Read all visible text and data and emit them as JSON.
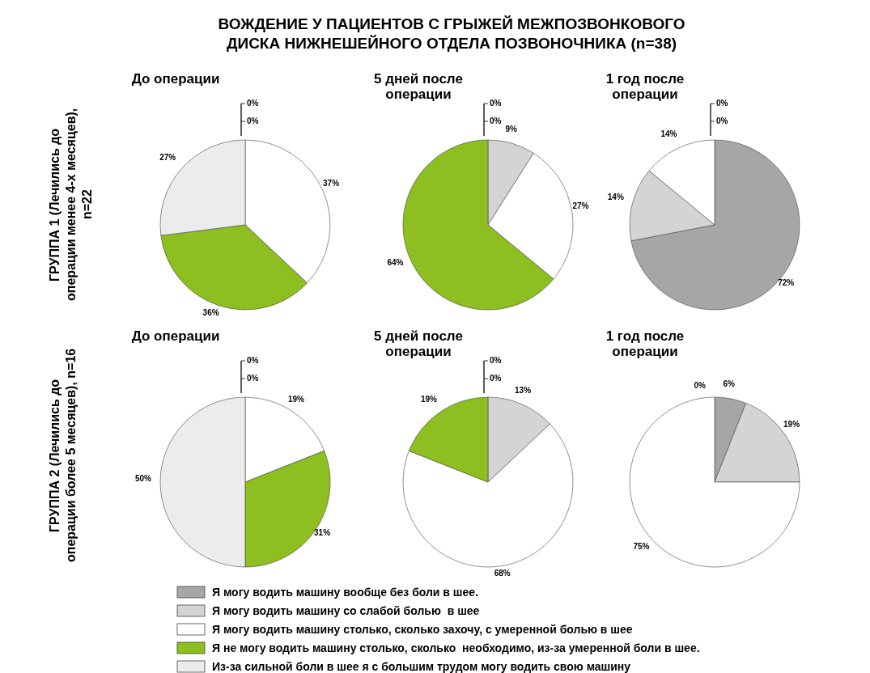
{
  "chart_data": [
    {
      "type": "pie",
      "title": "До операции",
      "annotations": [
        "ВОЖДЕНИЕ У ПАЦИЕНТОВ С ГРЫЖЕЙ МЕЖПОЗВОНКОВОГО ДИСКА НИЖНЕШЕЙНОГО ОТДЕЛА ПОЗВОНОЧНИКА (n=38)",
        "ГРУППА 1 (Лечились до операции менее 4-х месяцев), n=22"
      ],
      "legend": "bottom",
      "categories": [
        "Я могу водить машину вообще без боли в шее.",
        "Я могу водить машину со слабой болью  в шее",
        "Я могу водить машину столько, сколько захочу, с умеренной болью в шее",
        "Я не могу водить машину столько, сколько  необходимо, из-за умеренной боли в шее.",
        "Из-за сильной боли в шее я с большим трудом могу водить свою машину"
      ],
      "values": [
        0,
        0,
        37,
        36,
        27
      ],
      "value_labels": [
        "0%",
        "0%",
        "37%",
        "36%",
        "27%"
      ],
      "colors": [
        "#a6a6a6",
        "#d4d4d4",
        "#ffffff",
        "#8cbf1f",
        "#ececec"
      ]
    },
    {
      "type": "pie",
      "title": "5 дней после операции",
      "categories": [
        null,
        null,
        null,
        null,
        null
      ],
      "values": [
        0,
        9,
        27,
        64,
        0
      ],
      "value_labels": [
        "0%",
        "9%",
        "27%",
        "64%",
        "0%"
      ],
      "colors": [
        "#a6a6a6",
        "#d4d4d4",
        "#ffffff",
        "#8cbf1f",
        "#ececec"
      ]
    },
    {
      "type": "pie",
      "title": "1 год после операции",
      "categories": [
        null,
        null,
        null,
        null,
        null
      ],
      "values": [
        72,
        14,
        14,
        0,
        0
      ],
      "value_labels": [
        "72%",
        "14%",
        "14%",
        "0%",
        "0%"
      ],
      "colors": [
        "#a6a6a6",
        "#d4d4d4",
        "#ffffff",
        "#8cbf1f",
        "#ececec"
      ]
    },
    {
      "type": "pie",
      "title": "До операции",
      "annotations": [
        "ГРУППА 2 (Лечились до операции более 5 месяцев), n=16"
      ],
      "categories": [
        null,
        null,
        null,
        null,
        null
      ],
      "values": [
        0,
        0,
        19,
        31,
        50
      ],
      "value_labels": [
        "0%",
        "0%",
        "19%",
        "31%",
        "50%"
      ],
      "colors": [
        "#a6a6a6",
        "#d4d4d4",
        "#ffffff",
        "#8cbf1f",
        "#ececec"
      ]
    },
    {
      "type": "pie",
      "title": "5 дней после операции",
      "categories": [
        null,
        null,
        null,
        null,
        null
      ],
      "values": [
        0,
        13,
        68,
        19,
        0
      ],
      "value_labels": [
        "0%",
        "13%",
        "68%",
        "19%",
        "0%"
      ],
      "colors": [
        "#a6a6a6",
        "#d4d4d4",
        "#ffffff",
        "#8cbf1f",
        "#ececec"
      ]
    },
    {
      "type": "pie",
      "title": "1 год после операции",
      "categories": [
        null,
        null,
        null,
        null
      ],
      "values": [
        6,
        19,
        75,
        0
      ],
      "value_labels": [
        "6%",
        "19%",
        "75%",
        "0%"
      ],
      "colors": [
        "#a6a6a6",
        "#d4d4d4",
        "#ffffff",
        "#8cbf1f"
      ]
    }
  ]
}
